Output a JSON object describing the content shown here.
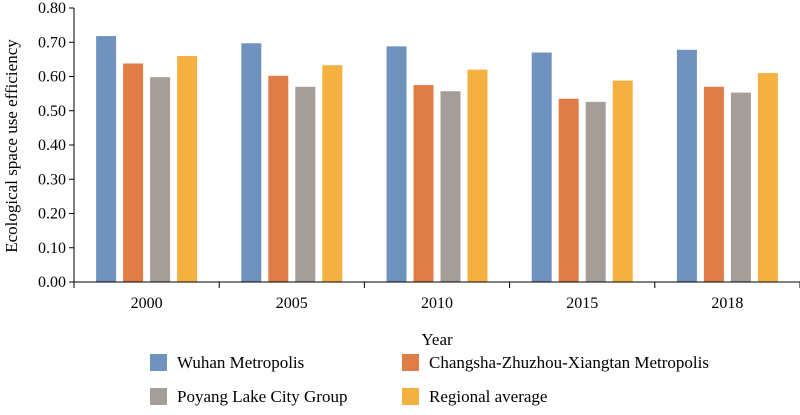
{
  "chart_data": {
    "type": "bar",
    "title": "",
    "xlabel": "Year",
    "ylabel": "Ecological space use efficiency",
    "ylim": [
      0,
      0.8
    ],
    "yticks": [
      "0.00",
      "0.10",
      "0.20",
      "0.30",
      "0.40",
      "0.50",
      "0.60",
      "0.70",
      "0.80"
    ],
    "categories": [
      "2000",
      "2005",
      "2010",
      "2015",
      "2018"
    ],
    "series": [
      {
        "name": "Wuhan Metropolis",
        "color": "#7092be",
        "values": [
          0.718,
          0.697,
          0.688,
          0.67,
          0.678
        ]
      },
      {
        "name": "Changsha-Zhuzhou-Xiangtan Metropolis",
        "color": "#e07c45",
        "values": [
          0.638,
          0.602,
          0.575,
          0.535,
          0.57
        ]
      },
      {
        "name": "Poyang Lake City Group",
        "color": "#a59d98",
        "values": [
          0.598,
          0.57,
          0.557,
          0.526,
          0.553
        ]
      },
      {
        "name": "Regional average",
        "color": "#f4b041",
        "values": [
          0.66,
          0.633,
          0.62,
          0.588,
          0.61
        ]
      }
    ],
    "grid": false,
    "legend_position": "bottom"
  }
}
